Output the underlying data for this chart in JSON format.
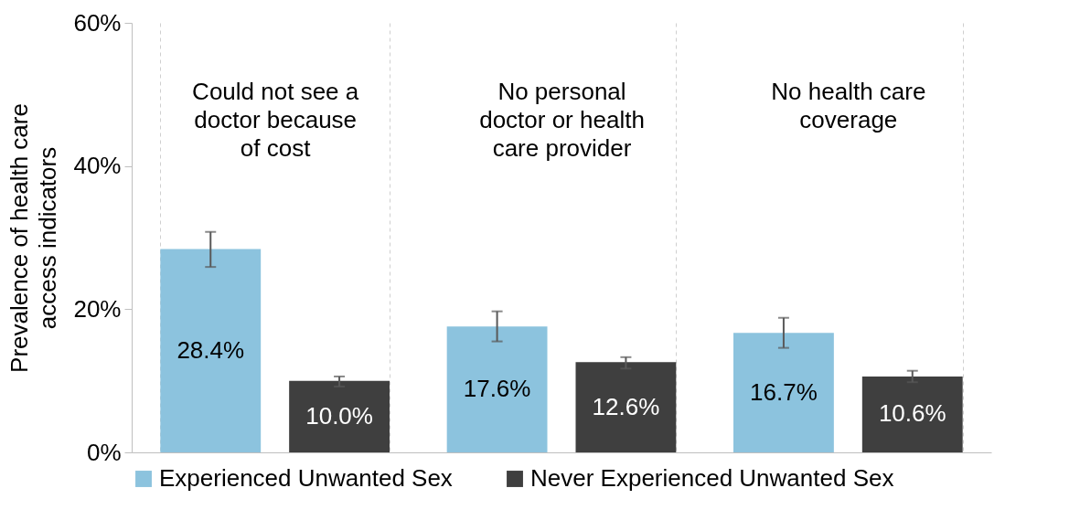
{
  "chart_data": {
    "type": "bar",
    "ylabel": "Prevalence of health care access indicators",
    "categories": [
      "Could not see a doctor because of cost",
      "No personal doctor or health care provider",
      "No health care coverage"
    ],
    "series": [
      {
        "name": "Experienced Unwanted Sex",
        "color": "#8cc3de",
        "values": [
          28.4,
          17.6,
          16.7
        ],
        "errors": [
          [
            25.9,
            30.8
          ],
          [
            15.5,
            19.7
          ],
          [
            14.6,
            18.8
          ]
        ],
        "value_labels": [
          "28.4%",
          "17.6%",
          "16.7%"
        ]
      },
      {
        "name": "Never Experienced Unwanted Sex",
        "color": "#3f3f3f",
        "values": [
          10.0,
          12.6,
          10.6
        ],
        "errors": [
          [
            9.2,
            10.6
          ],
          [
            11.7,
            13.3
          ],
          [
            9.8,
            11.4
          ]
        ],
        "value_labels": [
          "10.0%",
          "12.6%",
          "10.6%"
        ]
      }
    ],
    "ylim": [
      0,
      60
    ],
    "yticks": [
      {
        "value": 0,
        "label": "0%"
      },
      {
        "value": 20,
        "label": "20%"
      },
      {
        "value": 40,
        "label": "40%"
      },
      {
        "value": 60,
        "label": "60%"
      }
    ],
    "grid": "x",
    "legend": "bottom"
  }
}
